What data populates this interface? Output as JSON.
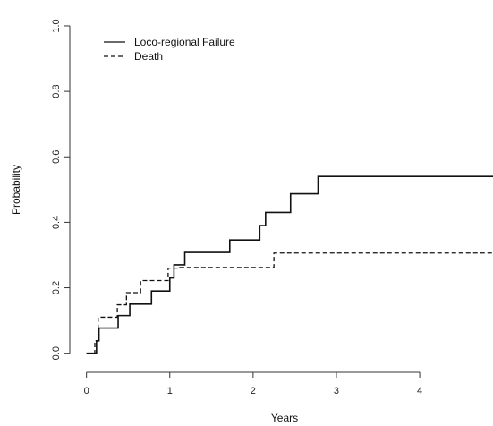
{
  "chart_data": {
    "type": "line",
    "step": true,
    "xlabel": "Years",
    "ylabel": "Probability",
    "xlim": [
      -0.05,
      4.88
    ],
    "ylim": [
      -0.02,
      1.03
    ],
    "xticks": [
      0,
      1,
      2,
      3,
      4
    ],
    "yticks": [
      0.0,
      0.2,
      0.4,
      0.6,
      0.8,
      1.0
    ],
    "xtick_labels": [
      "0",
      "1",
      "2",
      "3",
      "4"
    ],
    "ytick_labels": [
      "0.0",
      "0.2",
      "0.4",
      "0.6",
      "0.8",
      "1.0"
    ],
    "legend_position": "top-left",
    "series": [
      {
        "name": "Loco-regional Failure",
        "style": "solid",
        "color": "#111111",
        "x": [
          0.0,
          0.12,
          0.15,
          0.22,
          0.38,
          0.52,
          0.78,
          1.0,
          1.05,
          1.18,
          1.72,
          2.08,
          2.15,
          2.45,
          2.78,
          4.88
        ],
        "y": [
          0.0,
          0.038,
          0.077,
          0.077,
          0.115,
          0.15,
          0.19,
          0.23,
          0.27,
          0.308,
          0.346,
          0.39,
          0.43,
          0.487,
          0.54,
          0.54
        ]
      },
      {
        "name": "Death",
        "style": "dashed",
        "color": "#111111",
        "x": [
          0.0,
          0.1,
          0.14,
          0.33,
          0.37,
          0.48,
          0.65,
          0.95,
          0.98,
          1.12,
          2.25,
          4.88
        ],
        "y": [
          0.0,
          0.038,
          0.11,
          0.11,
          0.148,
          0.185,
          0.222,
          0.222,
          0.26,
          0.262,
          0.306,
          0.306
        ]
      }
    ]
  }
}
